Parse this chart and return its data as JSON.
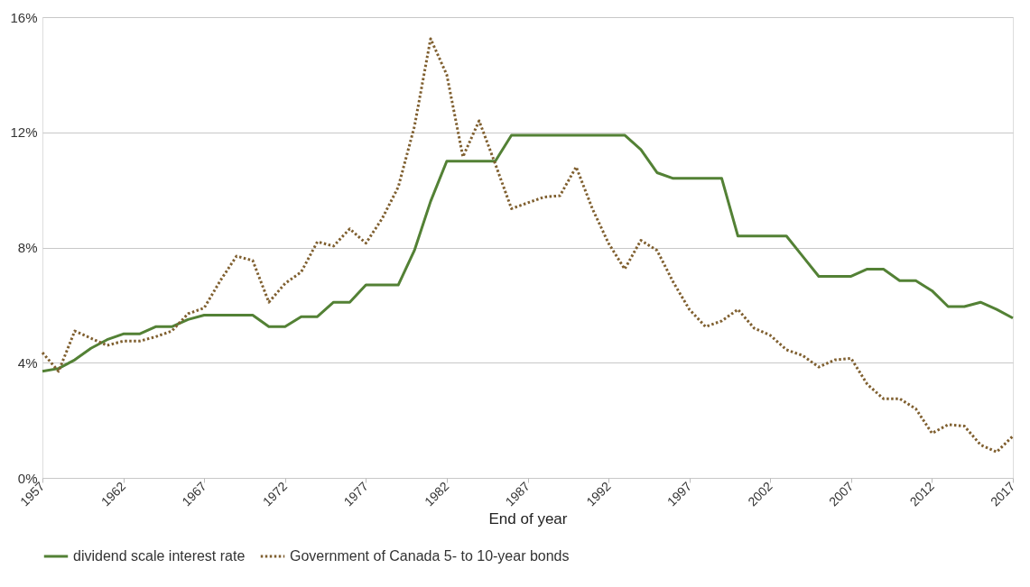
{
  "chart_data": {
    "type": "line",
    "xlabel": "End of year",
    "x": [
      1957,
      1958,
      1959,
      1960,
      1961,
      1962,
      1963,
      1964,
      1965,
      1966,
      1967,
      1968,
      1969,
      1970,
      1971,
      1972,
      1973,
      1974,
      1975,
      1976,
      1977,
      1978,
      1979,
      1980,
      1981,
      1982,
      1983,
      1984,
      1985,
      1986,
      1987,
      1988,
      1989,
      1990,
      1991,
      1992,
      1993,
      1994,
      1995,
      1996,
      1997,
      1998,
      1999,
      2000,
      2001,
      2002,
      2003,
      2004,
      2005,
      2006,
      2007,
      2008,
      2009,
      2010,
      2011,
      2012,
      2013,
      2014,
      2015,
      2016,
      2017
    ],
    "series": [
      {
        "name": "dividend scale interest rate",
        "color": "#538135",
        "line_style": "solid",
        "values": [
          3.7,
          3.8,
          4.1,
          4.5,
          4.8,
          5.0,
          5.0,
          5.25,
          5.25,
          5.5,
          5.65,
          5.65,
          5.65,
          5.65,
          5.25,
          5.25,
          5.6,
          5.6,
          6.1,
          6.1,
          6.7,
          6.7,
          6.7,
          7.9,
          9.6,
          11.0,
          11.0,
          11.0,
          11.0,
          11.9,
          11.9,
          11.9,
          11.9,
          11.9,
          11.9,
          11.9,
          11.9,
          11.4,
          10.6,
          10.4,
          10.4,
          10.4,
          10.4,
          8.4,
          8.4,
          8.4,
          8.4,
          7.7,
          7.0,
          7.0,
          7.0,
          7.25,
          7.25,
          6.85,
          6.85,
          6.5,
          5.95,
          5.95,
          6.1,
          5.85,
          5.55
        ]
      },
      {
        "name": "Government of Canada 5- to 10-year bonds",
        "color": "#7f5f2f",
        "line_style": "dotted",
        "values": [
          4.35,
          3.7,
          5.1,
          4.85,
          4.6,
          4.75,
          4.75,
          4.9,
          5.1,
          5.7,
          5.9,
          6.85,
          7.7,
          7.55,
          6.1,
          6.75,
          7.15,
          8.2,
          8.05,
          8.65,
          8.15,
          9.0,
          10.1,
          12.2,
          15.25,
          14.0,
          11.15,
          12.4,
          10.9,
          9.35,
          9.55,
          9.75,
          9.8,
          10.8,
          9.35,
          8.15,
          7.25,
          8.25,
          7.9,
          6.8,
          5.85,
          5.25,
          5.45,
          5.85,
          5.2,
          4.95,
          4.45,
          4.25,
          3.85,
          4.1,
          4.15,
          3.25,
          2.75,
          2.75,
          2.4,
          1.55,
          1.85,
          1.8,
          1.15,
          0.9,
          1.45
        ]
      }
    ],
    "xlim": [
      1957,
      2017
    ],
    "xticks": [
      1957,
      1962,
      1967,
      1972,
      1977,
      1982,
      1987,
      1992,
      1997,
      2002,
      2007,
      2012,
      2017
    ],
    "ylim": [
      0,
      16
    ],
    "yticks": [
      {
        "value": 0,
        "label": "0%"
      },
      {
        "value": 4,
        "label": "4%"
      },
      {
        "value": 8,
        "label": "8%"
      },
      {
        "value": 12,
        "label": "12%"
      },
      {
        "value": 16,
        "label": "16%"
      }
    ],
    "grid": "y",
    "legend": "bottom",
    "marker": "none"
  }
}
